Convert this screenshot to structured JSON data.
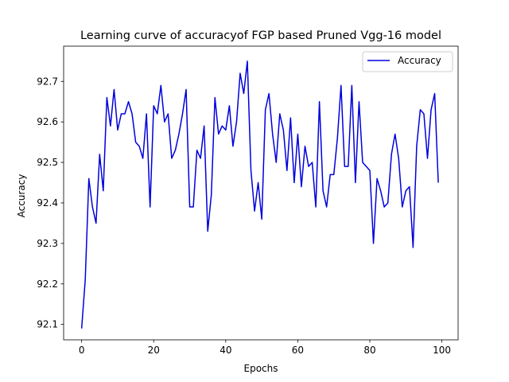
{
  "chart_data": {
    "type": "line",
    "title": "Learning curve of accuracyof FGP based Pruned Vgg-16 model",
    "xlabel": "Epochs",
    "ylabel": "Accuracy",
    "xlim": [
      -5,
      104.5
    ],
    "ylim": [
      92.062,
      92.787
    ],
    "xticks": [
      0,
      20,
      40,
      60,
      80,
      100
    ],
    "yticks": [
      92.1,
      92.2,
      92.3,
      92.4,
      92.5,
      92.6,
      92.7
    ],
    "grid": false,
    "legend_position": "top-right",
    "series": [
      {
        "name": "Accuracy",
        "color": "#0000dd",
        "x": [
          0,
          1,
          2,
          3,
          4,
          5,
          6,
          7,
          8,
          9,
          10,
          11,
          12,
          13,
          14,
          15,
          16,
          17,
          18,
          19,
          20,
          21,
          22,
          23,
          24,
          25,
          26,
          27,
          28,
          29,
          30,
          31,
          32,
          33,
          34,
          35,
          36,
          37,
          38,
          39,
          40,
          41,
          42,
          43,
          44,
          45,
          46,
          47,
          48,
          49,
          50,
          51,
          52,
          53,
          54,
          55,
          56,
          57,
          58,
          59,
          60,
          61,
          62,
          63,
          64,
          65,
          66,
          67,
          68,
          69,
          70,
          71,
          72,
          73,
          74,
          75,
          76,
          77,
          78,
          79,
          80,
          81,
          82,
          83,
          84,
          85,
          86,
          87,
          88,
          89,
          90,
          91,
          92,
          93,
          94,
          95,
          96,
          97,
          98,
          99
        ],
        "values": [
          92.09,
          92.21,
          92.46,
          92.39,
          92.35,
          92.52,
          92.43,
          92.66,
          92.59,
          92.68,
          92.58,
          92.62,
          92.62,
          92.65,
          92.62,
          92.55,
          92.54,
          92.51,
          92.62,
          92.39,
          92.64,
          92.62,
          92.69,
          92.6,
          92.62,
          92.51,
          92.53,
          92.57,
          92.62,
          92.68,
          92.39,
          92.39,
          92.53,
          92.51,
          92.59,
          92.33,
          92.42,
          92.66,
          92.57,
          92.59,
          92.58,
          92.64,
          92.54,
          92.6,
          92.72,
          92.67,
          92.75,
          92.48,
          92.38,
          92.45,
          92.36,
          92.63,
          92.67,
          92.57,
          92.5,
          92.62,
          92.58,
          92.48,
          92.61,
          92.45,
          92.57,
          92.44,
          92.54,
          92.49,
          92.5,
          92.39,
          92.65,
          92.43,
          92.39,
          92.47,
          92.47,
          92.56,
          92.69,
          92.49,
          92.49,
          92.69,
          92.45,
          92.65,
          92.5,
          92.49,
          92.48,
          92.3,
          92.46,
          92.43,
          92.39,
          92.4,
          92.52,
          92.57,
          92.51,
          92.39,
          92.43,
          92.44,
          92.29,
          92.54,
          92.63,
          92.62,
          92.51,
          92.63,
          92.67,
          92.45
        ]
      }
    ]
  }
}
